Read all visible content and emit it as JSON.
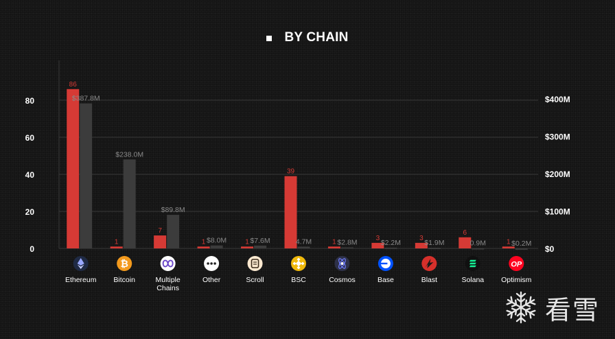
{
  "title": "BY CHAIN",
  "chart_data": {
    "type": "bar",
    "categories": [
      "Ethereum",
      "Bitcoin",
      "Multiple Chains",
      "Other",
      "Scroll",
      "BSC",
      "Cosmos",
      "Base",
      "Blast",
      "Solana",
      "Optimism"
    ],
    "category_lines": [
      [
        "Ethereum"
      ],
      [
        "Bitcoin"
      ],
      [
        "Multiple",
        "Chains"
      ],
      [
        "Other"
      ],
      [
        "Scroll"
      ],
      [
        "BSC"
      ],
      [
        "Cosmos"
      ],
      [
        "Base"
      ],
      [
        "Blast"
      ],
      [
        "Solana"
      ],
      [
        "Optimism"
      ]
    ],
    "series": [
      {
        "axis": "left",
        "color": "#d63a35",
        "values": [
          86,
          1,
          7,
          1,
          1,
          39,
          1,
          3,
          3,
          6,
          1
        ],
        "labels": [
          "86",
          "1",
          "7",
          "1",
          "1",
          "39",
          "1",
          "3",
          "3",
          "6",
          "1"
        ]
      },
      {
        "axis": "right",
        "color": "#3c3c3c",
        "values": [
          387.8,
          238.0,
          89.8,
          8.0,
          7.6,
          4.7,
          2.8,
          2.2,
          1.9,
          0.9,
          0.2
        ],
        "labels": [
          "$387.8M",
          "$238.0M",
          "$89.8M",
          "$8.0M",
          "$7.6M",
          "4.7M",
          "$2.8M",
          "$2.2M",
          "$1.9M",
          "0.9M",
          "$0.2M"
        ]
      }
    ],
    "y_left": {
      "ticks": [
        "0",
        "20",
        "40",
        "60",
        "80"
      ],
      "tick_values": [
        0,
        20,
        40,
        60,
        80
      ],
      "ylim": [
        0,
        80
      ]
    },
    "y_right": {
      "ticks": [
        "$0",
        "$100M",
        "$200M",
        "$300M",
        "$400M"
      ],
      "tick_values": [
        0,
        100,
        200,
        300,
        400
      ],
      "ylim": [
        0,
        400
      ]
    },
    "grid": true,
    "legend": "none"
  },
  "icons": [
    {
      "name": "ethereum-icon",
      "bg": "#1f2a44",
      "fg": "#9aa8ff"
    },
    {
      "name": "bitcoin-icon",
      "bg": "#f39a1d",
      "fg": "#ffffff",
      "glyph": "₿"
    },
    {
      "name": "multichain-icon",
      "bg": "#ffffff",
      "fg": "#6c49c9"
    },
    {
      "name": "other-icon",
      "bg": "#ffffff",
      "fg": "#222222"
    },
    {
      "name": "scroll-icon",
      "bg": "#fbe8cf",
      "fg": "#3a2a1a"
    },
    {
      "name": "bsc-icon",
      "bg": "#f0b90b",
      "fg": "#ffffff"
    },
    {
      "name": "cosmos-icon",
      "bg": "#2e3148",
      "fg": "#6f7cff"
    },
    {
      "name": "base-icon",
      "bg": "#0052ff",
      "fg": "#ffffff"
    },
    {
      "name": "blast-icon",
      "bg": "#d6302b",
      "fg": "#1a1a1a"
    },
    {
      "name": "solana-icon",
      "bg": "#101010",
      "fg": "#14f195"
    },
    {
      "name": "optimism-icon",
      "bg": "#ff0420",
      "fg": "#ffffff",
      "glyph": "OP"
    }
  ],
  "watermark": {
    "text": "看雪"
  }
}
